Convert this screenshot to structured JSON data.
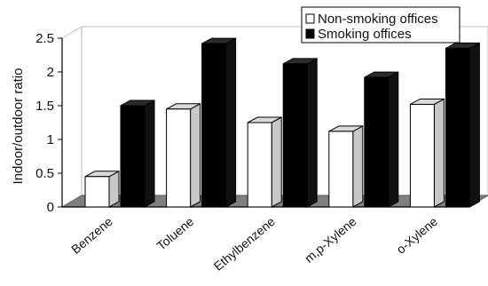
{
  "chart_data": {
    "type": "bar",
    "ylabel": "Indoor/outdoor ratio",
    "ylim": [
      0,
      2.5
    ],
    "yticks": [
      "0",
      "0.5",
      "1",
      "1.5",
      "2",
      "2.5"
    ],
    "categories": [
      "Benzene",
      "Toluene",
      "Ethylbenzene",
      "m,p-Xylene",
      "o-Xylene"
    ],
    "series": [
      {
        "name": "Non-smoking offices",
        "values": [
          0.45,
          1.45,
          1.25,
          1.12,
          1.52
        ],
        "color": "#ffffff"
      },
      {
        "name": "Smoking offices",
        "values": [
          1.5,
          2.42,
          2.12,
          1.92,
          2.35
        ],
        "color": "#000000"
      }
    ],
    "legend_position": "top-right",
    "floor_color": "#7f7f7f",
    "grid": false
  }
}
